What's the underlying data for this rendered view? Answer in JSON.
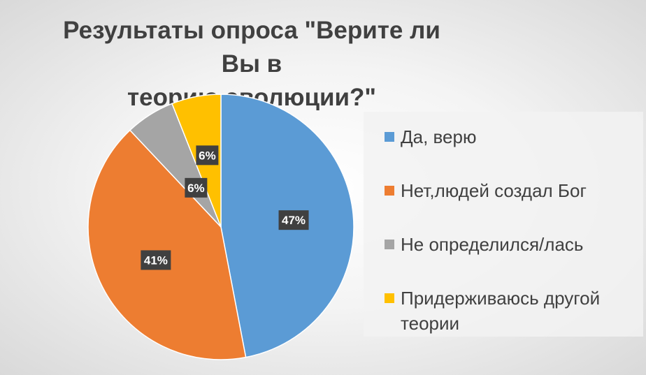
{
  "chart_data": {
    "type": "pie",
    "title": "Результаты опроса \"Верите ли Вы в теорию эволюции?\"",
    "title_lines": [
      "Результаты опроса \"Верите ли Вы в",
      "теорию эволюции?\""
    ],
    "categories": [
      "Да, верю",
      "Нет,людей создал Бог",
      "Не определился/лась",
      "Придерживаюсь другой теории"
    ],
    "values": [
      47,
      41,
      6,
      6
    ],
    "data_labels": [
      "47%",
      "41%",
      "6%",
      "6%"
    ],
    "colors": [
      "#5B9BD5",
      "#ED7D31",
      "#A5A5A5",
      "#FFC000"
    ],
    "legend_position": "right"
  }
}
